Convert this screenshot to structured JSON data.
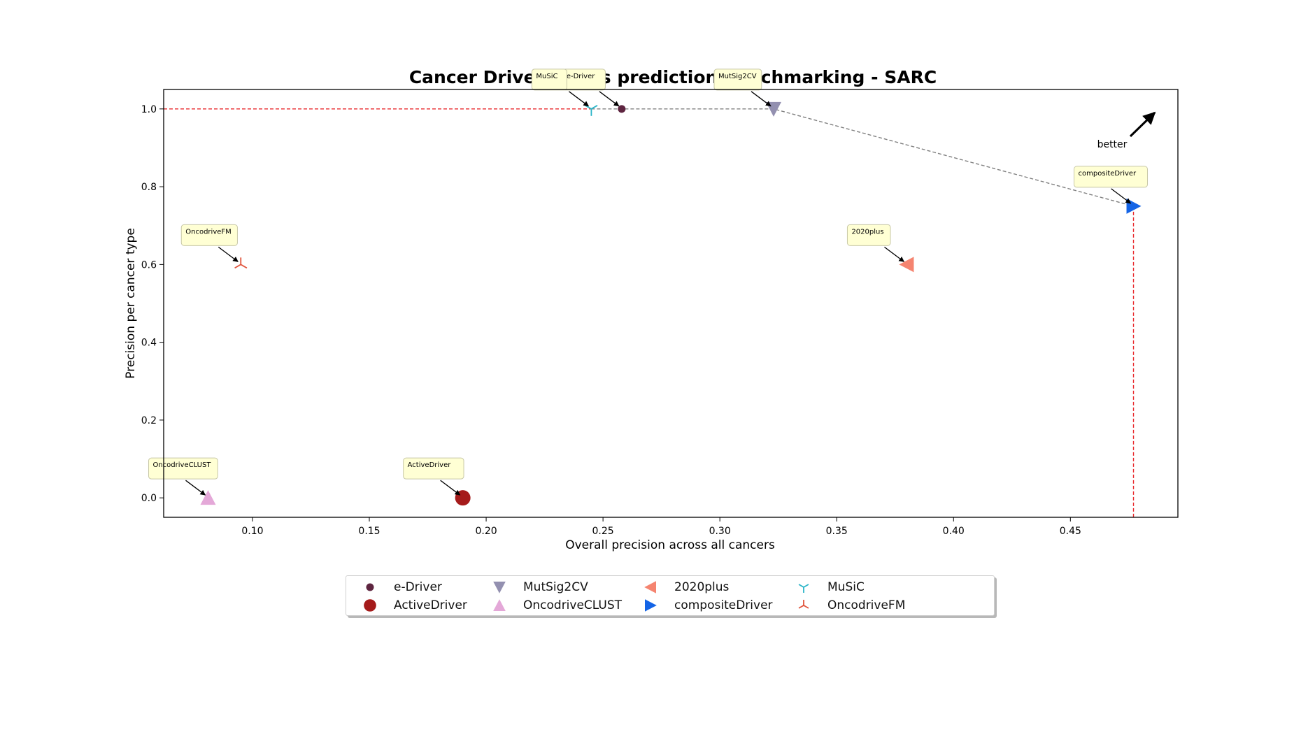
{
  "chart_data": {
    "type": "scatter",
    "title": "Cancer Driver Genes prediction benchmarking - SARC",
    "xlabel": "Overall precision across all cancers",
    "ylabel": "Precision per cancer type",
    "xlim": [
      0.062,
      0.496
    ],
    "ylim": [
      -0.05,
      1.05
    ],
    "xticks": [
      "0.10",
      "0.15",
      "0.20",
      "0.25",
      "0.30",
      "0.35",
      "0.40",
      "0.45"
    ],
    "yticks": [
      "0.0",
      "0.2",
      "0.4",
      "0.6",
      "0.8",
      "1.0"
    ],
    "grid": false,
    "legend_placement": "bottom-center, below axes",
    "better_label": "better",
    "series": [
      {
        "name": "e-Driver",
        "x": 0.258,
        "y": 1.0,
        "marker": "circle-small",
        "color": "#5e2540",
        "annotation": "e-Driver"
      },
      {
        "name": "ActiveDriver",
        "x": 0.19,
        "y": 0.0,
        "marker": "circle-large",
        "color": "#a51b1b",
        "annotation": "ActiveDriver"
      },
      {
        "name": "MutSig2CV",
        "x": 0.323,
        "y": 1.0,
        "marker": "triangle-down",
        "color": "#9390b0",
        "annotation": "MutSig2CV"
      },
      {
        "name": "OncodriveCLUST",
        "x": 0.081,
        "y": 0.0,
        "marker": "triangle-up",
        "color": "#e4a8d8",
        "annotation": "OncodriveCLUST"
      },
      {
        "name": "2020plus",
        "x": 0.38,
        "y": 0.6,
        "marker": "triangle-left",
        "color": "#f58470",
        "annotation": "2020plus"
      },
      {
        "name": "compositeDriver",
        "x": 0.477,
        "y": 0.75,
        "marker": "triangle-right",
        "color": "#1464e6",
        "annotation": "compositeDriver"
      },
      {
        "name": "MuSiC",
        "x": 0.245,
        "y": 1.0,
        "marker": "tri-down",
        "color": "#2bb5c8",
        "annotation": "MuSiC"
      },
      {
        "name": "OncodriveFM",
        "x": 0.095,
        "y": 0.6,
        "marker": "tri-up",
        "color": "#e0523a",
        "annotation": "OncodriveFM"
      }
    ],
    "pareto_front": {
      "x": [
        0.245,
        0.258,
        0.323,
        0.477
      ],
      "y": [
        1.0,
        1.0,
        1.0,
        0.75
      ],
      "color": "#808080"
    },
    "reference_lines": {
      "horizontal_y": 1.0,
      "horizontal_to_x": 0.245,
      "vertical_x": 0.477,
      "vertical_from_y": 0.75,
      "color": "#e8272b"
    }
  }
}
